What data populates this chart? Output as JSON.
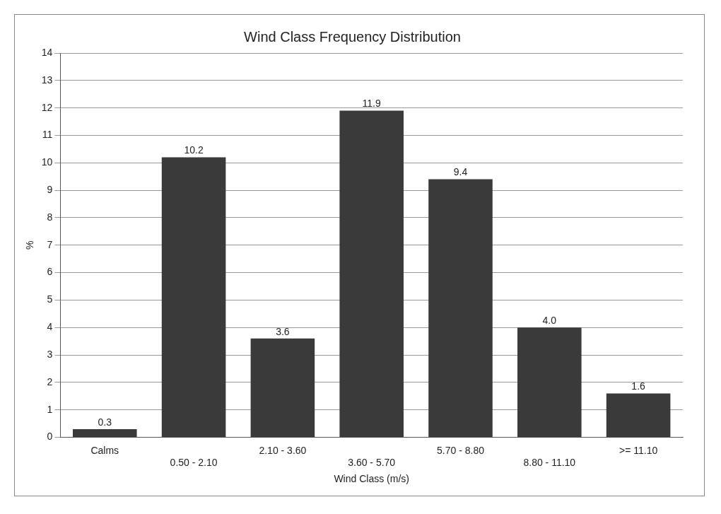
{
  "chart_data": {
    "type": "bar",
    "title": "Wind Class Frequency Distribution",
    "xlabel": "Wind Class (m/s)",
    "ylabel": "%",
    "categories": [
      "Calms",
      "0.50 - 2.10",
      "2.10 - 3.60",
      "3.60 - 5.70",
      "5.70 - 8.80",
      "8.80 - 11.10",
      ">= 11.10"
    ],
    "values": [
      0.3,
      10.2,
      3.6,
      11.9,
      9.4,
      4.0,
      1.6
    ],
    "value_labels": [
      "0.3",
      "10.2",
      "3.6",
      "11.9",
      "9.4",
      "4.0",
      "1.6"
    ],
    "color": "#3a3a3a",
    "ylim": [
      0,
      14
    ],
    "yticks": [
      0,
      1,
      2,
      3,
      4,
      5,
      6,
      7,
      8,
      9,
      10,
      11,
      12,
      13,
      14
    ],
    "grid": "y",
    "legend": false
  }
}
